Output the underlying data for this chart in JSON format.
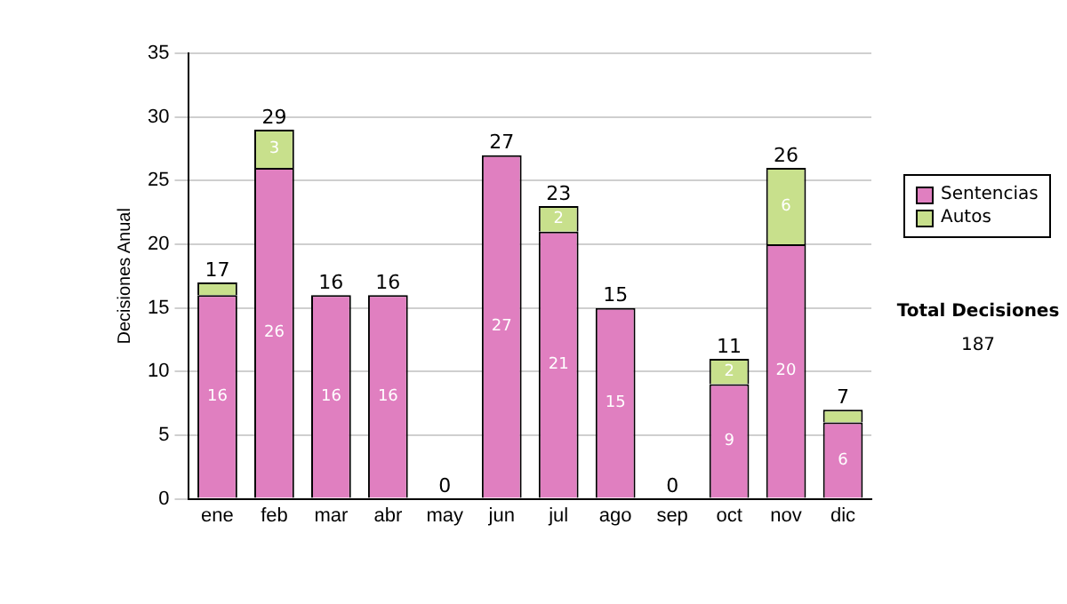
{
  "chart_data": {
    "type": "bar",
    "stacked": true,
    "ylabel": "Decisiones Anual",
    "categories": [
      "ene",
      "feb",
      "mar",
      "abr",
      "may",
      "jun",
      "jul",
      "ago",
      "sep",
      "oct",
      "nov",
      "dic"
    ],
    "series": [
      {
        "name": "Sentencias",
        "color": "#e07fc0",
        "values": [
          16,
          26,
          16,
          16,
          0,
          27,
          21,
          15,
          0,
          9,
          20,
          6
        ],
        "value_labels": [
          "16",
          "26",
          "16",
          "16",
          null,
          "27",
          "21",
          "15",
          null,
          "9",
          "20",
          "6"
        ]
      },
      {
        "name": "Autos",
        "color": "#c8e08c",
        "values": [
          1,
          3,
          0,
          0,
          0,
          0,
          2,
          0,
          0,
          2,
          6,
          1
        ],
        "value_labels": [
          null,
          "3",
          null,
          null,
          null,
          null,
          "2",
          null,
          null,
          "2",
          "6",
          null
        ]
      }
    ],
    "totals": [
      "17",
      "29",
      "16",
      "16",
      "0",
      "27",
      "23",
      "15",
      "0",
      "11",
      "26",
      "7"
    ],
    "ylim": [
      0,
      35
    ],
    "yticks": [
      0,
      5,
      10,
      15,
      20,
      25,
      30,
      35
    ],
    "grid": "y",
    "legend": "right",
    "annotations": [
      "Total Decisiones",
      "187"
    ]
  }
}
